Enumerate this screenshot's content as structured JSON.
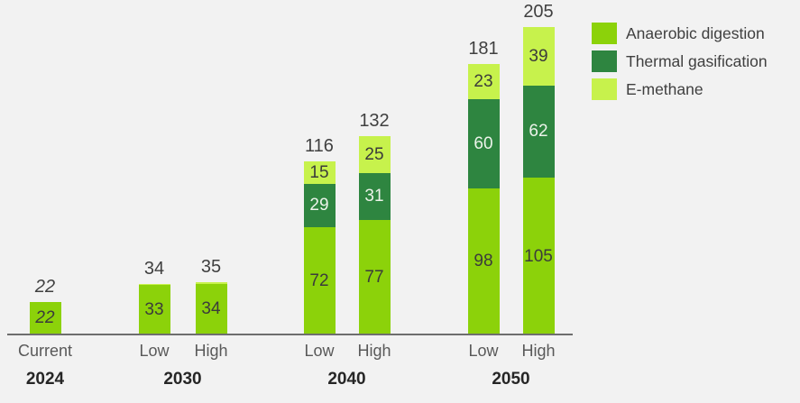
{
  "background": "#F2F2F2",
  "chart_data": {
    "type": "bar",
    "stacked": true,
    "title": "",
    "xlabel": "",
    "ylabel": "",
    "gridlines": false,
    "legend_position": "top-right",
    "axis_line_color": "#6E6E6E",
    "series": [
      {
        "name": "Anaerobic digestion",
        "color": "#8CD20A",
        "label_color": "#3B3B3B"
      },
      {
        "name": "Thermal gasification",
        "color": "#2E8540",
        "label_color": "#ECF3EA"
      },
      {
        "name": "E-methane",
        "color": "#C7F24C",
        "label_color": "#3B3B3B"
      }
    ],
    "groups": [
      {
        "year": "2024",
        "bars": [
          {
            "scenario": "Current",
            "italic": true,
            "total": 22,
            "values": [
              22,
              0,
              0
            ]
          }
        ]
      },
      {
        "year": "2030",
        "bars": [
          {
            "scenario": "Low",
            "italic": false,
            "total": 34,
            "values": [
              33,
              0,
              1
            ]
          },
          {
            "scenario": "High",
            "italic": false,
            "total": 35,
            "values": [
              34,
              0,
              1
            ]
          }
        ]
      },
      {
        "year": "2040",
        "bars": [
          {
            "scenario": "Low",
            "italic": false,
            "total": 116,
            "values": [
              72,
              29,
              15
            ]
          },
          {
            "scenario": "High",
            "italic": false,
            "total": 132,
            "values": [
              77,
              31,
              25
            ]
          }
        ]
      },
      {
        "year": "2050",
        "bars": [
          {
            "scenario": "Low",
            "italic": false,
            "total": 181,
            "values": [
              98,
              60,
              23
            ]
          },
          {
            "scenario": "High",
            "italic": false,
            "total": 205,
            "values": [
              105,
              62,
              39
            ]
          }
        ]
      }
    ],
    "text_colors": {
      "total_label": "#404040",
      "category_label": "#595959",
      "year_label": "#262626",
      "legend_label": "#404040"
    }
  }
}
